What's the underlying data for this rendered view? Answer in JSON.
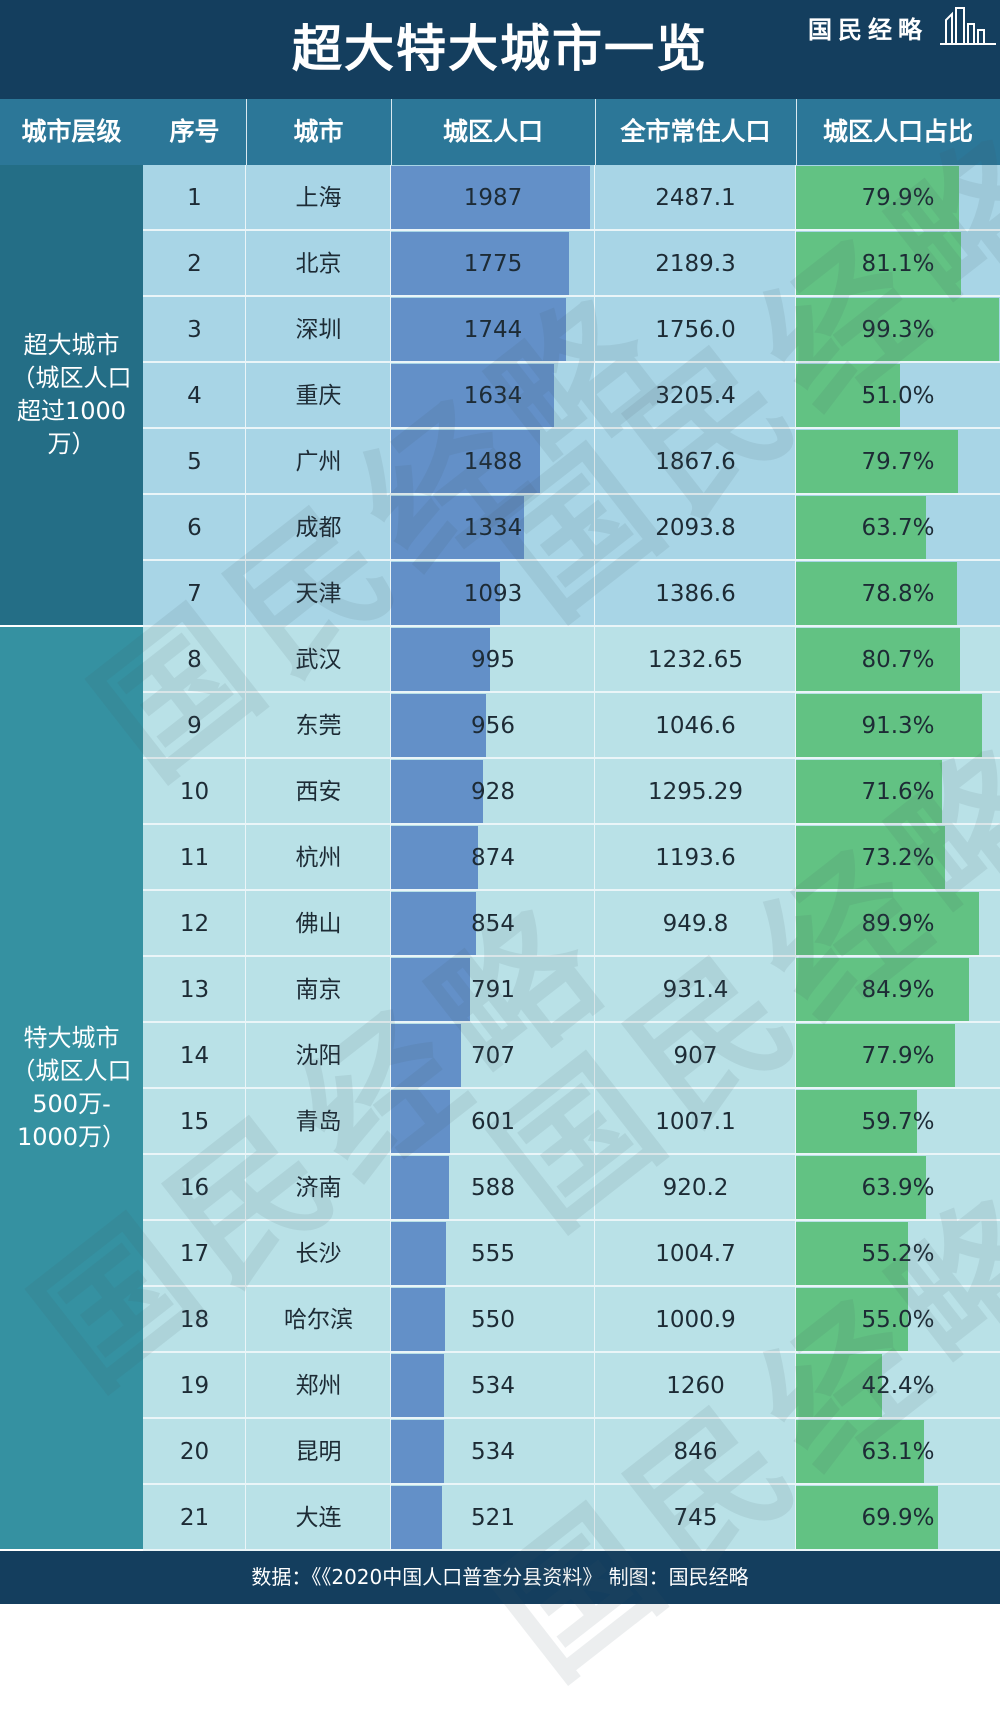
{
  "title": "超大特大城市一览",
  "brand": "国民经略",
  "source_note": "数据：《《2020中国人口普查分县资料》 制图：国民经略",
  "watermark_text": "国民经略",
  "colors": {
    "header_bg": "#143e5e",
    "column_header_bg": "#2c7798",
    "group_super_bg": "#246e86",
    "group_mega_bg": "#3591a1",
    "row_super_bg": "#a8d5e6",
    "row_mega_bg": "#b9e1e7",
    "bar_blue": "#6390c8",
    "bar_green": "#62c283"
  },
  "chart_data": {
    "type": "table",
    "columns": [
      "城市层级",
      "序号",
      "城市",
      "城区人口",
      "全市常住人口",
      "城区人口占比"
    ],
    "groups": [
      {
        "label": "超大城市\n（城区人口\n超过1000\n万）",
        "rows": 7
      },
      {
        "label": "特大城市\n（城区人口\n500万-\n1000万）",
        "rows": 14
      }
    ],
    "urban_population_max": 1987,
    "share_max": 100,
    "rows": [
      {
        "no": "1",
        "city": "上海",
        "urban": "1987",
        "total": "2487.1",
        "share": "79.9%",
        "urban_value": 1987,
        "share_value": 79.9
      },
      {
        "no": "2",
        "city": "北京",
        "urban": "1775",
        "total": "2189.3",
        "share": "81.1%",
        "urban_value": 1775,
        "share_value": 81.1
      },
      {
        "no": "3",
        "city": "深圳",
        "urban": "1744",
        "total": "1756.0",
        "share": "99.3%",
        "urban_value": 1744,
        "share_value": 99.3
      },
      {
        "no": "4",
        "city": "重庆",
        "urban": "1634",
        "total": "3205.4",
        "share": "51.0%",
        "urban_value": 1634,
        "share_value": 51.0
      },
      {
        "no": "5",
        "city": "广州",
        "urban": "1488",
        "total": "1867.6",
        "share": "79.7%",
        "urban_value": 1488,
        "share_value": 79.7
      },
      {
        "no": "6",
        "city": "成都",
        "urban": "1334",
        "total": "2093.8",
        "share": "63.7%",
        "urban_value": 1334,
        "share_value": 63.7
      },
      {
        "no": "7",
        "city": "天津",
        "urban": "1093",
        "total": "1386.6",
        "share": "78.8%",
        "urban_value": 1093,
        "share_value": 78.8
      },
      {
        "no": "8",
        "city": "武汉",
        "urban": "995",
        "total": "1232.65",
        "share": "80.7%",
        "urban_value": 995,
        "share_value": 80.7
      },
      {
        "no": "9",
        "city": "东莞",
        "urban": "956",
        "total": "1046.6",
        "share": "91.3%",
        "urban_value": 956,
        "share_value": 91.3
      },
      {
        "no": "10",
        "city": "西安",
        "urban": "928",
        "total": "1295.29",
        "share": "71.6%",
        "urban_value": 928,
        "share_value": 71.6
      },
      {
        "no": "11",
        "city": "杭州",
        "urban": "874",
        "total": "1193.6",
        "share": "73.2%",
        "urban_value": 874,
        "share_value": 73.2
      },
      {
        "no": "12",
        "city": "佛山",
        "urban": "854",
        "total": "949.8",
        "share": "89.9%",
        "urban_value": 854,
        "share_value": 89.9
      },
      {
        "no": "13",
        "city": "南京",
        "urban": "791",
        "total": "931.4",
        "share": "84.9%",
        "urban_value": 791,
        "share_value": 84.9
      },
      {
        "no": "14",
        "city": "沈阳",
        "urban": "707",
        "total": "907",
        "share": "77.9%",
        "urban_value": 707,
        "share_value": 77.9
      },
      {
        "no": "15",
        "city": "青岛",
        "urban": "601",
        "total": "1007.1",
        "share": "59.7%",
        "urban_value": 601,
        "share_value": 59.7
      },
      {
        "no": "16",
        "city": "济南",
        "urban": "588",
        "total": "920.2",
        "share": "63.9%",
        "urban_value": 588,
        "share_value": 63.9
      },
      {
        "no": "17",
        "city": "长沙",
        "urban": "555",
        "total": "1004.7",
        "share": "55.2%",
        "urban_value": 555,
        "share_value": 55.2
      },
      {
        "no": "18",
        "city": "哈尔滨",
        "urban": "550",
        "total": "1000.9",
        "share": "55.0%",
        "urban_value": 550,
        "share_value": 55.0
      },
      {
        "no": "19",
        "city": "郑州",
        "urban": "534",
        "total": "1260",
        "share": "42.4%",
        "urban_value": 534,
        "share_value": 42.4
      },
      {
        "no": "20",
        "city": "昆明",
        "urban": "534",
        "total": "846",
        "share": "63.1%",
        "urban_value": 534,
        "share_value": 63.1
      },
      {
        "no": "21",
        "city": "大连",
        "urban": "521",
        "total": "745",
        "share": "69.9%",
        "urban_value": 521,
        "share_value": 69.9
      }
    ]
  }
}
